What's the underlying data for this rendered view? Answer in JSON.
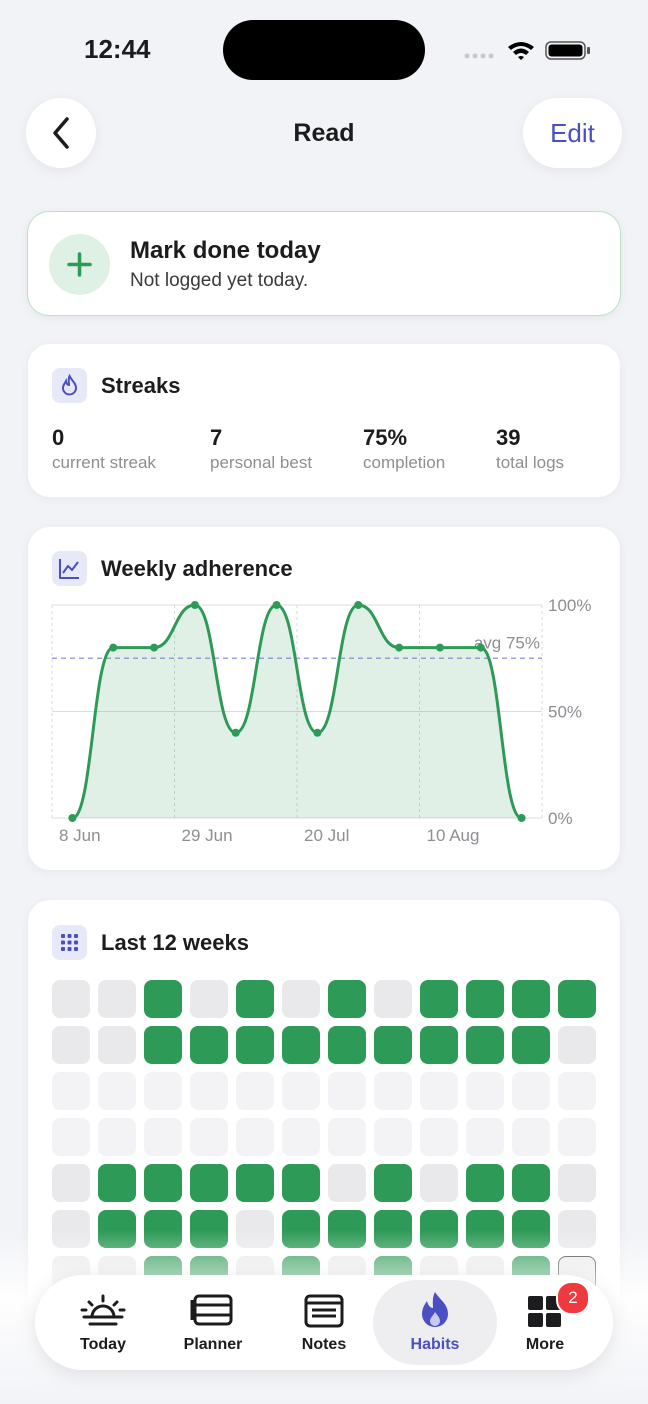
{
  "status_bar": {
    "time": "12:44"
  },
  "header": {
    "title": "Read",
    "action": "Edit"
  },
  "mark_done": {
    "title": "Mark done today",
    "subtitle": "Not logged yet today."
  },
  "streaks": {
    "title": "Streaks",
    "stats": [
      {
        "value": "0",
        "label": "current streak"
      },
      {
        "value": "7",
        "label": "personal best"
      },
      {
        "value": "75%",
        "label": "completion"
      },
      {
        "value": "39",
        "label": "total logs"
      }
    ]
  },
  "chart_data": {
    "type": "line",
    "title": "Weekly adherence",
    "categories": [
      "8 Jun",
      null,
      null,
      "29 Jun",
      null,
      null,
      "20 Jul",
      null,
      null,
      "10 Aug",
      null,
      null
    ],
    "values": [
      0,
      80,
      80,
      100,
      40,
      100,
      40,
      100,
      80,
      80,
      80,
      0
    ],
    "color": "#2e9a57",
    "ylim": [
      0,
      100
    ],
    "yticks": [
      {
        "value": 0,
        "label": "0%"
      },
      {
        "value": 50,
        "label": "50%"
      },
      {
        "value": 100,
        "label": "100%"
      }
    ],
    "grid": true,
    "average": {
      "value": 75,
      "label": "avg 75%"
    }
  },
  "heatmap": {
    "title": "Last 12 weeks",
    "rows": [
      [
        0,
        0,
        1,
        0,
        1,
        0,
        1,
        0,
        1,
        1,
        1,
        1
      ],
      [
        0,
        0,
        1,
        1,
        1,
        1,
        1,
        1,
        1,
        1,
        1,
        0
      ],
      [
        null,
        null,
        null,
        null,
        null,
        null,
        null,
        null,
        null,
        null,
        null,
        null
      ],
      [
        null,
        null,
        null,
        null,
        null,
        null,
        null,
        null,
        null,
        null,
        null,
        null
      ],
      [
        0,
        1,
        1,
        1,
        1,
        1,
        0,
        1,
        0,
        1,
        1,
        0
      ],
      [
        0,
        1,
        1,
        1,
        0,
        1,
        1,
        1,
        1,
        1,
        1,
        0
      ],
      [
        0,
        0,
        1,
        1,
        0,
        1,
        0,
        1,
        0,
        0,
        1,
        0
      ]
    ],
    "today": [
      6,
      11
    ]
  },
  "tab_bar": {
    "tabs": [
      {
        "label": "Today"
      },
      {
        "label": "Planner"
      },
      {
        "label": "Notes"
      },
      {
        "label": "Habits"
      },
      {
        "label": "More",
        "badge": "2"
      }
    ],
    "active": 3
  }
}
